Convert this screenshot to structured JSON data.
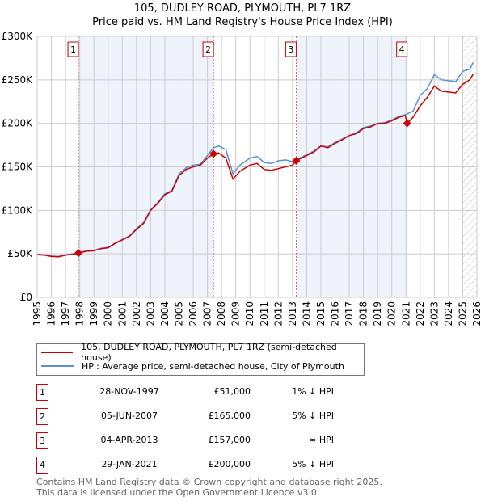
{
  "chart_data": {
    "type": "line",
    "title": "105, DUDLEY ROAD, PLYMOUTH, PL7 1RZ",
    "subtitle": "Price paid vs. HM Land Registry's House Price Index (HPI)",
    "xlim": [
      1995,
      2026
    ],
    "ylim": [
      0,
      300000
    ],
    "x_ticks": [
      "1995",
      "1996",
      "1997",
      "1998",
      "1999",
      "2000",
      "2001",
      "2002",
      "2003",
      "2004",
      "2005",
      "2006",
      "2007",
      "2008",
      "2009",
      "2010",
      "2011",
      "2012",
      "2013",
      "2014",
      "2015",
      "2016",
      "2017",
      "2018",
      "2019",
      "2020",
      "2021",
      "2022",
      "2023",
      "2024",
      "2025",
      "2026"
    ],
    "y_ticks": [
      {
        "v": 0,
        "label": "£0"
      },
      {
        "v": 50000,
        "label": "£50K"
      },
      {
        "v": 100000,
        "label": "£100K"
      },
      {
        "v": 150000,
        "label": "£150K"
      },
      {
        "v": 200000,
        "label": "£200K"
      },
      {
        "v": 250000,
        "label": "£250K"
      },
      {
        "v": 300000,
        "label": "£300K"
      }
    ],
    "grid": true,
    "forecast_hatch_from": 2025.0,
    "shaded_ranges": [
      [
        1997.91,
        2007.43
      ],
      [
        2013.26,
        2021.08
      ]
    ],
    "series": [
      {
        "name": "105, DUDLEY ROAD, PLYMOUTH, PL7 1RZ (semi-detached house)",
        "color": "#cc0000",
        "x": [
          1995,
          1995.5,
          1996,
          1996.5,
          1997,
          1997.5,
          1997.91,
          1998.5,
          1999,
          1999.5,
          2000,
          2000.5,
          2001,
          2001.5,
          2002,
          2002.5,
          2003,
          2003.5,
          2004,
          2004.5,
          2005,
          2005.5,
          2006,
          2006.5,
          2007,
          2007.43,
          2007.8,
          2008.3,
          2008.8,
          2009.3,
          2010,
          2010.5,
          2011,
          2011.5,
          2012,
          2012.5,
          2013,
          2013.26,
          2014,
          2014.5,
          2015,
          2015.5,
          2016,
          2016.5,
          2017,
          2017.5,
          2018,
          2018.5,
          2019,
          2019.5,
          2020,
          2020.5,
          2020.95,
          2021.08,
          2021.5,
          2022,
          2022.5,
          2023,
          2023.5,
          2024,
          2024.5,
          2025,
          2025.5,
          2025.75
        ],
        "y": [
          49000,
          48500,
          47000,
          46500,
          48500,
          49500,
          51000,
          53000,
          53500,
          56000,
          57000,
          62000,
          66000,
          70000,
          78000,
          85000,
          100000,
          108000,
          118000,
          122000,
          140000,
          147000,
          150000,
          152000,
          160000,
          165000,
          166000,
          160000,
          136000,
          145000,
          152000,
          154000,
          147000,
          146000,
          148000,
          150000,
          152000,
          157000,
          163000,
          167000,
          174000,
          172000,
          177000,
          181000,
          186000,
          188000,
          194000,
          196000,
          200000,
          200000,
          203000,
          207000,
          209000,
          200000,
          207000,
          220000,
          230000,
          243000,
          237000,
          236000,
          235000,
          245000,
          250000,
          257000
        ]
      },
      {
        "name": "HPI: Average price, semi-detached house, City of Plymouth",
        "color": "#5b8fd6",
        "x": [
          1995,
          1995.5,
          1996,
          1996.5,
          1997,
          1997.5,
          1997.91,
          1998.5,
          1999,
          1999.5,
          2000,
          2000.5,
          2001,
          2001.5,
          2002,
          2002.5,
          2003,
          2003.5,
          2004,
          2004.5,
          2005,
          2005.5,
          2006,
          2006.5,
          2007,
          2007.43,
          2007.8,
          2008.3,
          2008.8,
          2009.3,
          2010,
          2010.5,
          2011,
          2011.5,
          2012,
          2012.5,
          2013,
          2013.26,
          2014,
          2014.5,
          2015,
          2015.5,
          2016,
          2016.5,
          2017,
          2017.5,
          2018,
          2018.5,
          2019,
          2019.5,
          2020,
          2020.5,
          2020.95,
          2021.08,
          2021.5,
          2022,
          2022.5,
          2023,
          2023.5,
          2024,
          2024.5,
          2025,
          2025.5,
          2025.75
        ],
        "y": [
          49500,
          49000,
          47500,
          47000,
          49000,
          50000,
          51500,
          53500,
          54000,
          56500,
          57500,
          62500,
          66500,
          70500,
          79000,
          86000,
          101000,
          109000,
          119000,
          123000,
          142000,
          149000,
          152000,
          153000,
          163000,
          172000,
          174000,
          170000,
          142000,
          152000,
          160000,
          162000,
          155000,
          154000,
          157000,
          158000,
          156000,
          158000,
          164000,
          168000,
          174000,
          173000,
          178000,
          182000,
          186000,
          189000,
          195000,
          197000,
          200000,
          201000,
          204000,
          208000,
          210000,
          211000,
          214000,
          232000,
          240000,
          256000,
          250000,
          249000,
          248000,
          260000,
          262000,
          270000
        ]
      }
    ],
    "sales": [
      {
        "n": "1",
        "x": 1997.91,
        "y": 51000,
        "date": "28-NOV-1997",
        "price": "£51,000",
        "hpi": "1% ↓ HPI"
      },
      {
        "n": "2",
        "x": 2007.43,
        "y": 165000,
        "date": "05-JUN-2007",
        "price": "£165,000",
        "hpi": "5% ↓ HPI"
      },
      {
        "n": "3",
        "x": 2013.26,
        "y": 157000,
        "date": "04-APR-2013",
        "price": "£157,000",
        "hpi": "≈ HPI"
      },
      {
        "n": "4",
        "x": 2021.08,
        "y": 200000,
        "date": "29-JAN-2021",
        "price": "£200,000",
        "hpi": "5% ↓ HPI"
      }
    ]
  },
  "footer": {
    "line1": "Contains HM Land Registry data © Crown copyright and database right 2025.",
    "line2": "This data is licensed under the Open Government Licence v3.0."
  }
}
